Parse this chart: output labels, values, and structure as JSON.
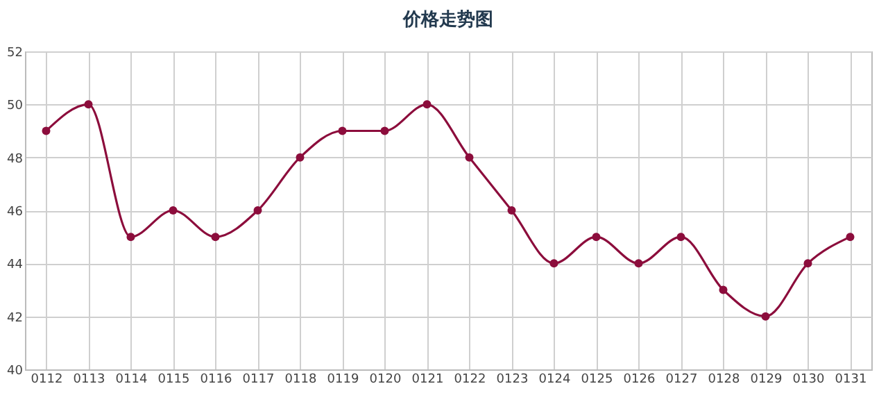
{
  "chart_data": {
    "type": "line",
    "title": "价格走势图",
    "categories": [
      "0112",
      "0113",
      "0114",
      "0115",
      "0116",
      "0117",
      "0118",
      "0119",
      "0120",
      "0121",
      "0122",
      "0123",
      "0124",
      "0125",
      "0126",
      "0127",
      "0128",
      "0129",
      "0130",
      "0131"
    ],
    "series": [
      {
        "color": "#8c0d3c",
        "values": [
          49,
          50,
          45,
          46,
          45,
          46,
          48,
          49,
          49,
          50,
          48,
          46,
          44,
          45,
          44,
          45,
          43,
          42,
          44,
          45
        ]
      }
    ],
    "ylim": [
      40,
      52
    ],
    "yticks": [
      40,
      42,
      44,
      46,
      48,
      50,
      52
    ],
    "grid": true,
    "marker": "circle",
    "line_style": "solid",
    "legend": false
  }
}
